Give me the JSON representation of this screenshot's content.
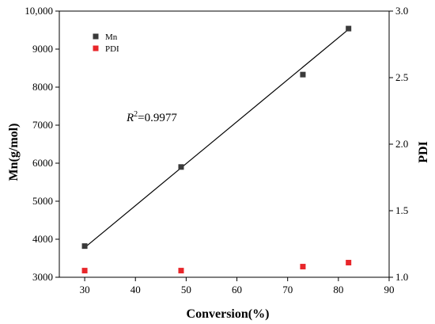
{
  "chart_data": {
    "type": "scatter",
    "x": [
      30,
      49,
      73,
      82
    ],
    "xlabel": "Conversion(%)",
    "xlim": [
      25,
      90
    ],
    "xticks": [
      30,
      40,
      50,
      60,
      70,
      80,
      90
    ],
    "ylabel": "Mn(g/mol)",
    "ylim": [
      3000,
      10000
    ],
    "yticks": [
      3000,
      4000,
      5000,
      6000,
      7000,
      8000,
      9000,
      10000
    ],
    "ytick_labels": [
      "3000",
      "4000",
      "5000",
      "6000",
      "7000",
      "8000",
      "9000",
      "10,000"
    ],
    "y2label": "PDI",
    "y2lim": [
      1.0,
      3.0
    ],
    "y2ticks": [
      1.0,
      1.5,
      2.0,
      2.5,
      3.0
    ],
    "y2tick_labels": [
      "1.0",
      "1.5",
      "2.0",
      "2.5",
      "3.0"
    ],
    "series": [
      {
        "name": "Mn",
        "axis": "left",
        "color": "#3a3a3a",
        "values": [
          3820,
          5900,
          8330,
          9540
        ]
      },
      {
        "name": "PDI",
        "axis": "right",
        "color": "#e8262a",
        "values": [
          1.05,
          1.05,
          1.08,
          1.11
        ]
      }
    ],
    "fit_line": {
      "series": "Mn",
      "x": [
        30,
        82
      ],
      "y": [
        3780,
        9520
      ]
    },
    "annotation": {
      "base": "R",
      "sup": "2",
      "rest": "=0.9977"
    },
    "legend_position": "top-left",
    "grid": false
  }
}
